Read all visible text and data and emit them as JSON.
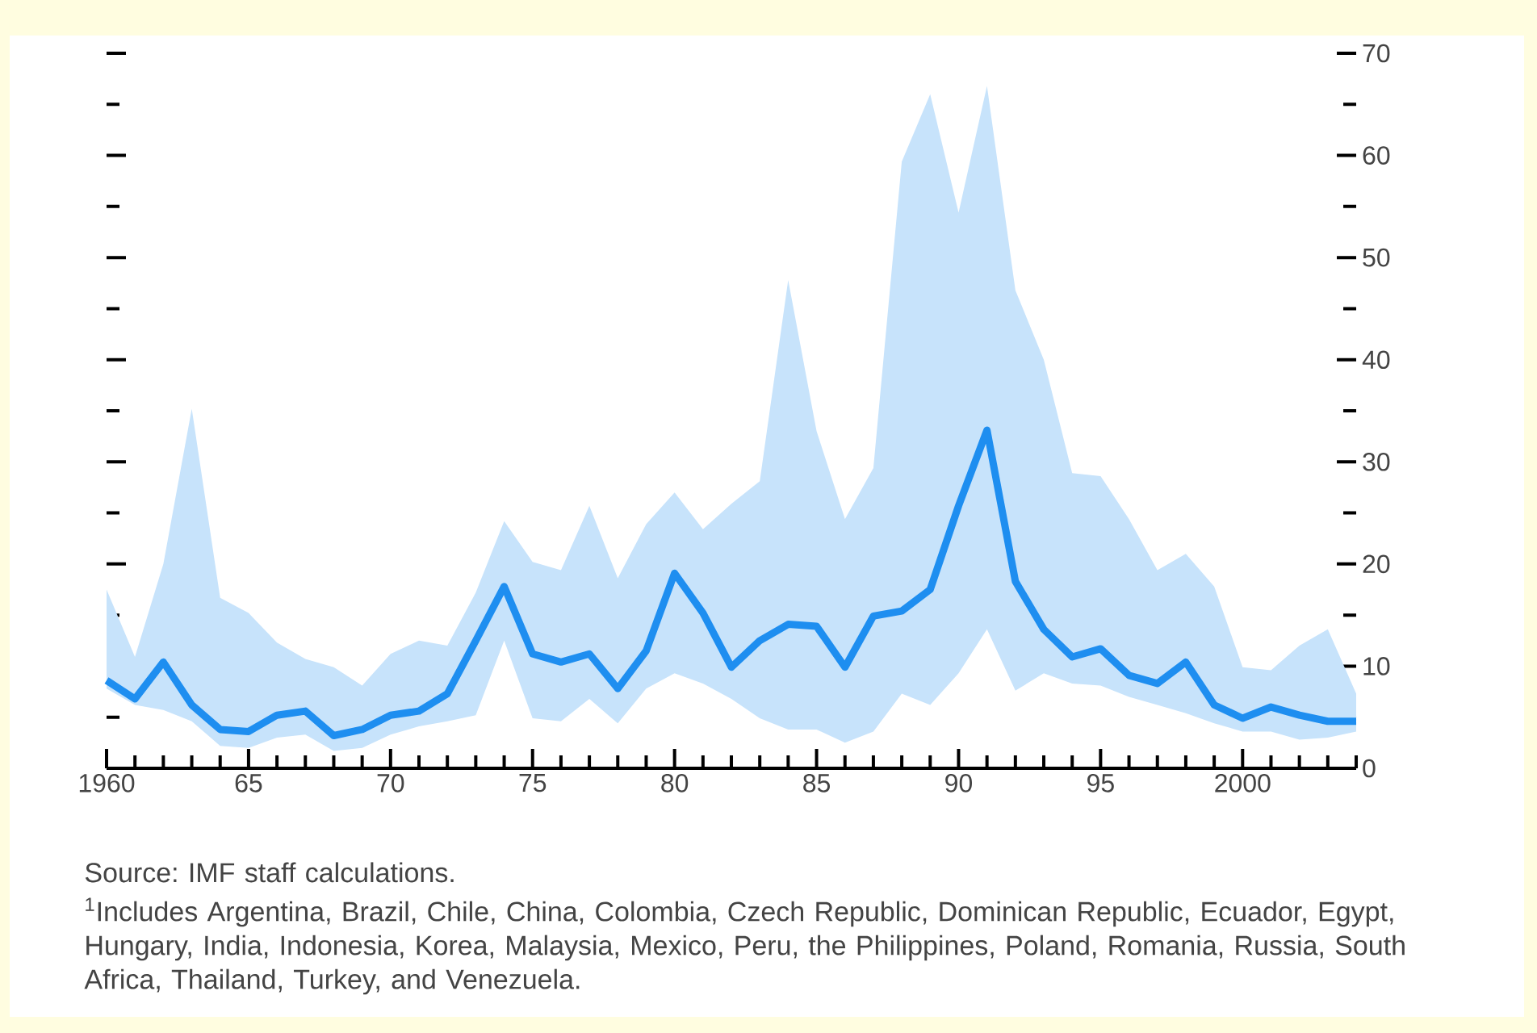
{
  "chart_data": {
    "type": "line",
    "x": [
      1960,
      1961,
      1962,
      1963,
      1964,
      1965,
      1966,
      1967,
      1968,
      1969,
      1970,
      1971,
      1972,
      1973,
      1974,
      1975,
      1976,
      1977,
      1978,
      1979,
      1980,
      1981,
      1982,
      1983,
      1984,
      1985,
      1986,
      1987,
      1988,
      1989,
      1990,
      1991,
      1992,
      1993,
      1994,
      1995,
      1996,
      1997,
      1998,
      1999,
      2000,
      2001,
      2002,
      2003,
      2004
    ],
    "series": [
      {
        "color": "#1e8ef0",
        "values": [
          8.6,
          6.8,
          10.4,
          6.2,
          3.8,
          3.6,
          5.2,
          5.6,
          3.2,
          3.8,
          5.2,
          5.6,
          7.3,
          12.5,
          17.8,
          11.2,
          10.4,
          11.2,
          7.8,
          11.5,
          19.1,
          15.2,
          9.9,
          12.5,
          14.1,
          13.9,
          9.9,
          14.9,
          15.4,
          17.5,
          25.7,
          33.1,
          18.3,
          13.6,
          10.9,
          11.7,
          9.1,
          8.3,
          10.4,
          6.2,
          4.9,
          6.0,
          5.2,
          4.6,
          4.6
        ],
        "lower": [
          7.8,
          6.2,
          5.7,
          4.6,
          2.2,
          2.0,
          3.0,
          3.3,
          1.7,
          2.0,
          3.3,
          4.1,
          4.6,
          5.2,
          12.5,
          4.9,
          4.6,
          6.8,
          4.4,
          7.8,
          9.3,
          8.3,
          6.8,
          4.9,
          3.8,
          3.8,
          2.5,
          3.6,
          7.3,
          6.2,
          9.3,
          13.6,
          7.6,
          9.3,
          8.3,
          8.1,
          7.0,
          6.2,
          5.4,
          4.4,
          3.6,
          3.6,
          2.8,
          3.0,
          3.6
        ],
        "upper": [
          17.5,
          10.9,
          20.0,
          35.2,
          16.7,
          15.2,
          12.3,
          10.7,
          9.9,
          8.1,
          11.2,
          12.5,
          12.0,
          17.2,
          24.2,
          20.2,
          19.4,
          25.7,
          18.6,
          23.9,
          27.0,
          23.4,
          25.9,
          28.1,
          47.8,
          33.0,
          24.4,
          29.4,
          59.4,
          66.0,
          54.4,
          66.8,
          46.8,
          40.0,
          28.9,
          28.6,
          24.4,
          19.4,
          21.0,
          17.8,
          9.9,
          9.6,
          12.0,
          13.6,
          7.3
        ]
      }
    ],
    "xlim": [
      1960,
      2004
    ],
    "xticks": [
      {
        "value": 1960,
        "label": "1960"
      },
      {
        "value": 1961,
        "label": null
      },
      {
        "value": 1962,
        "label": null
      },
      {
        "value": 1963,
        "label": null
      },
      {
        "value": 1964,
        "label": null
      },
      {
        "value": 1965,
        "label": "65"
      },
      {
        "value": 1966,
        "label": null
      },
      {
        "value": 1967,
        "label": null
      },
      {
        "value": 1968,
        "label": null
      },
      {
        "value": 1969,
        "label": null
      },
      {
        "value": 1970,
        "label": "70"
      },
      {
        "value": 1971,
        "label": null
      },
      {
        "value": 1972,
        "label": null
      },
      {
        "value": 1973,
        "label": null
      },
      {
        "value": 1974,
        "label": null
      },
      {
        "value": 1975,
        "label": "75"
      },
      {
        "value": 1976,
        "label": null
      },
      {
        "value": 1977,
        "label": null
      },
      {
        "value": 1978,
        "label": null
      },
      {
        "value": 1979,
        "label": null
      },
      {
        "value": 1980,
        "label": "80"
      },
      {
        "value": 1981,
        "label": null
      },
      {
        "value": 1982,
        "label": null
      },
      {
        "value": 1983,
        "label": null
      },
      {
        "value": 1984,
        "label": null
      },
      {
        "value": 1985,
        "label": "85"
      },
      {
        "value": 1986,
        "label": null
      },
      {
        "value": 1987,
        "label": null
      },
      {
        "value": 1988,
        "label": null
      },
      {
        "value": 1989,
        "label": null
      },
      {
        "value": 1990,
        "label": "90"
      },
      {
        "value": 1991,
        "label": null
      },
      {
        "value": 1992,
        "label": null
      },
      {
        "value": 1993,
        "label": null
      },
      {
        "value": 1994,
        "label": null
      },
      {
        "value": 1995,
        "label": "95"
      },
      {
        "value": 1996,
        "label": null
      },
      {
        "value": 1997,
        "label": null
      },
      {
        "value": 1998,
        "label": null
      },
      {
        "value": 1999,
        "label": null
      },
      {
        "value": 2000,
        "label": "2000"
      },
      {
        "value": 2001,
        "label": null
      },
      {
        "value": 2002,
        "label": null
      },
      {
        "value": 2003,
        "label": null
      },
      {
        "value": 2004,
        "label": null
      }
    ],
    "ylim": [
      0,
      70
    ],
    "yticks": [
      0,
      {
        "value": 5,
        "label": null
      },
      10,
      {
        "value": 15,
        "label": null
      },
      20,
      {
        "value": 25,
        "label": null
      },
      30,
      {
        "value": 35,
        "label": null
      },
      40,
      {
        "value": 45,
        "label": null
      },
      50,
      {
        "value": 55,
        "label": null
      },
      60,
      {
        "value": 65,
        "label": null
      },
      70
    ],
    "annotations": [
      "Source: IMF staff calculations.",
      "$^{1}$Includes Argentina, Brazil, Chile, China, Colombia, Czech Republic, Dominican Republic, Ecuador, Egypt, Hungary, India, Indonesia, Korea, Malaysia, Mexico, Peru, the Philippines, Poland, Romania, Russia, South Africa, Thailand, Turkey, and Venezuela."
    ]
  }
}
